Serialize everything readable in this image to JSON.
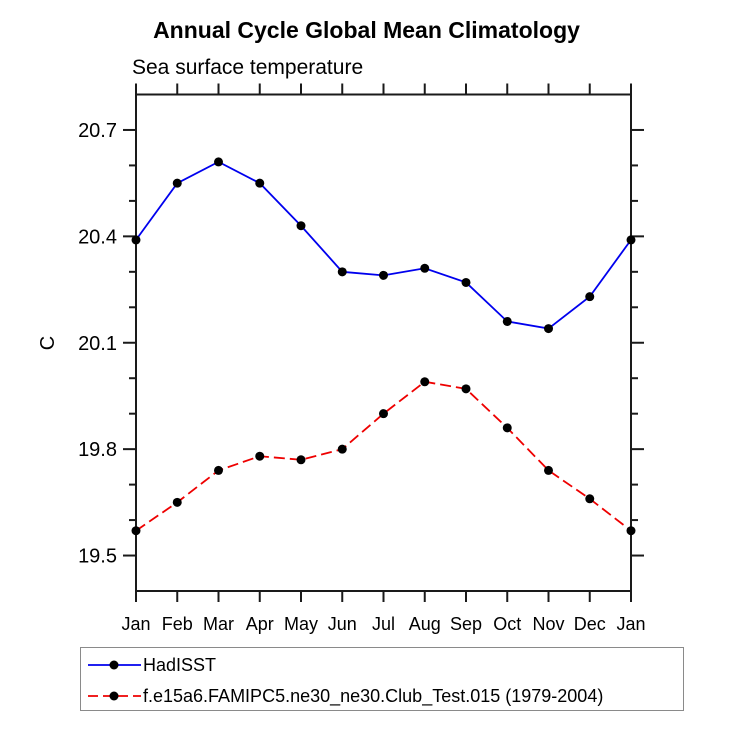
{
  "title": "Annual Cycle Global Mean Climatology",
  "subtitle": "Sea surface temperature",
  "chart_data": {
    "type": "line",
    "title": "Annual Cycle Global Mean Climatology",
    "subtitle": "Sea surface temperature",
    "xlabel": "",
    "ylabel": "C",
    "categories": [
      "Jan",
      "Feb",
      "Mar",
      "Apr",
      "May",
      "Jun",
      "Jul",
      "Aug",
      "Sep",
      "Oct",
      "Nov",
      "Dec",
      "Jan"
    ],
    "ylim": [
      19.4,
      20.8
    ],
    "yticks_major": [
      19.5,
      19.8,
      20.1,
      20.4,
      20.7
    ],
    "ytick_minor_step": 0.1,
    "grid": false,
    "legend_position": "bottom-left boxed",
    "axis_color": "#1a1a1a",
    "marker_color": "#000000",
    "series": [
      {
        "name": "HadISST",
        "color": "#0000ee",
        "style": "solid",
        "marker": "filled-circle",
        "values": [
          20.39,
          20.55,
          20.61,
          20.55,
          20.43,
          20.3,
          20.29,
          20.31,
          20.27,
          20.16,
          20.14,
          20.23,
          20.39
        ]
      },
      {
        "name": "f.e15a6.FAMIPC5.ne30_ne30.Club_Test.015 (1979-2004)",
        "color": "#ee0000",
        "style": "dashed",
        "marker": "filled-circle",
        "values": [
          19.57,
          19.65,
          19.74,
          19.78,
          19.77,
          19.8,
          19.9,
          19.99,
          19.97,
          19.86,
          19.74,
          19.66,
          19.57
        ]
      }
    ]
  }
}
